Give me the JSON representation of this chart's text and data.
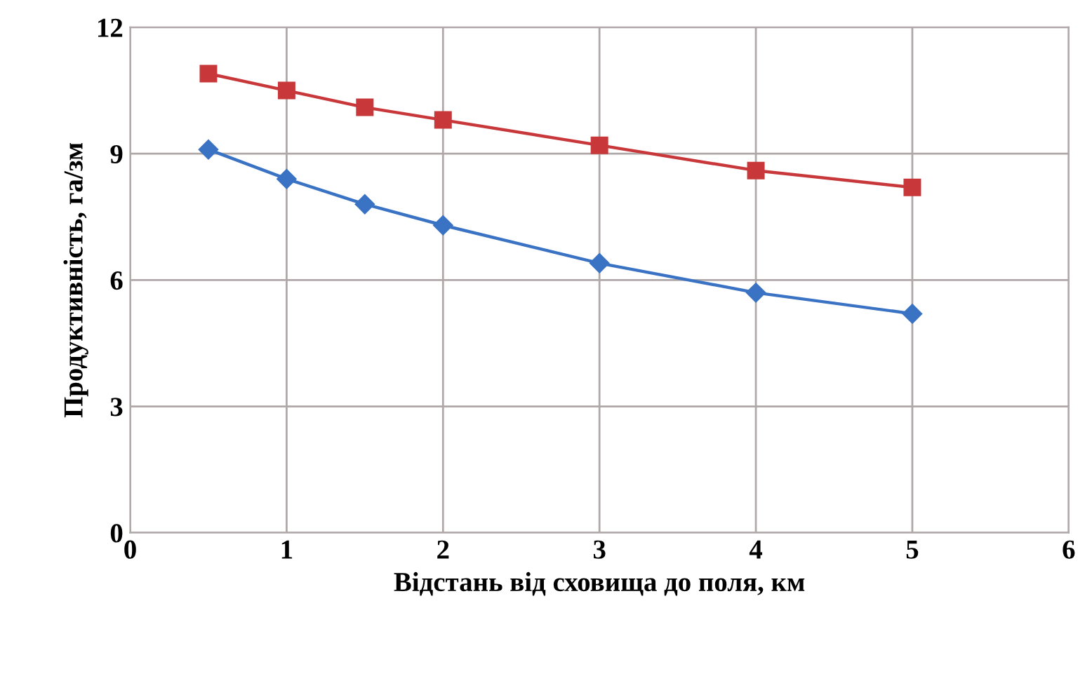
{
  "chart_data": {
    "type": "line",
    "xlabel": "Відстань від сховища до поля, км",
    "ylabel": "Продуктивність, га/зм",
    "x": [
      0.5,
      1,
      1.5,
      2,
      3,
      4,
      5
    ],
    "series": [
      {
        "color": "#3a72c4",
        "marker": "diamond",
        "values": [
          9.1,
          8.4,
          7.8,
          7.3,
          6.4,
          5.7,
          5.2
        ]
      },
      {
        "color": "#c8383a",
        "marker": "square",
        "values": [
          10.9,
          10.5,
          10.1,
          9.8,
          9.2,
          8.6,
          8.2
        ]
      }
    ],
    "xlim": [
      0,
      6
    ],
    "xticks": [
      0,
      1,
      2,
      3,
      4,
      5,
      6
    ],
    "ylim": [
      0,
      12
    ],
    "yticks": [
      0,
      3,
      6,
      9,
      12
    ],
    "grid": true
  }
}
